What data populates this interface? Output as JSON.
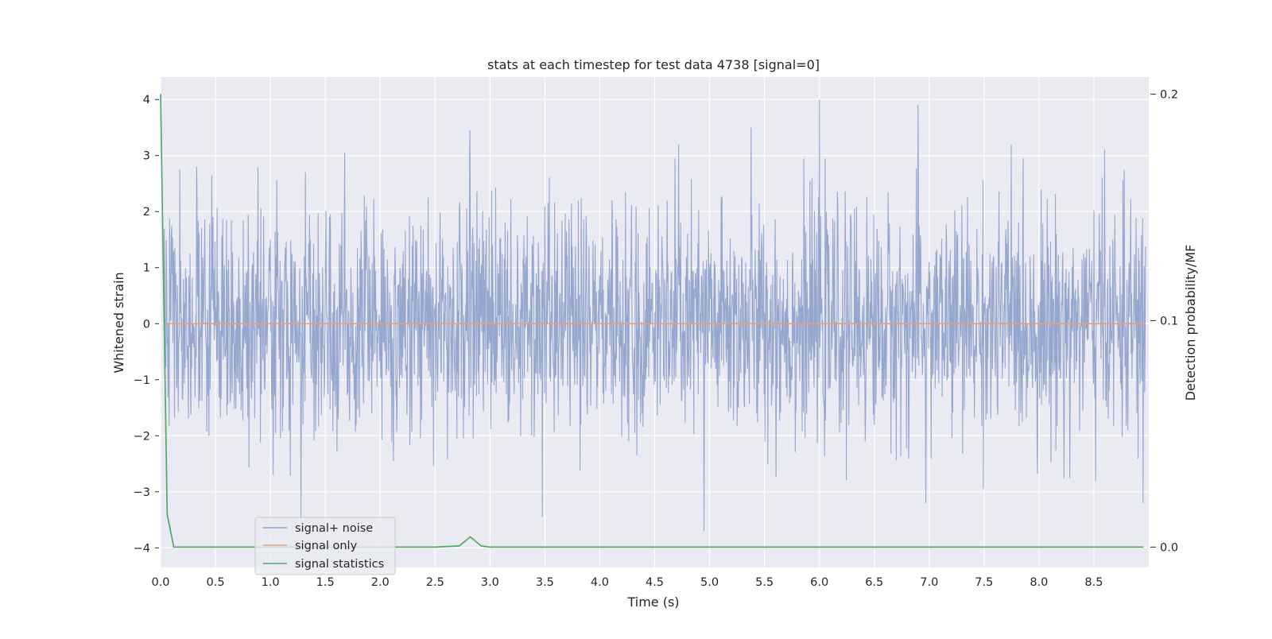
{
  "chart_data": {
    "type": "line",
    "title": "stats at each timestep for test data 4738 [signal=0]",
    "xlabel": "Time (s)",
    "ylabel": "Whitened strain",
    "y2label": "Detection probability/MF",
    "xlim": [
      0.0,
      9.0
    ],
    "ylim": [
      -4.35,
      4.4
    ],
    "y2lim": [
      -0.009,
      0.2075
    ],
    "x_ticks": [
      "0.0",
      "0.5",
      "1.0",
      "1.5",
      "2.0",
      "2.5",
      "3.0",
      "3.5",
      "4.0",
      "4.5",
      "5.0",
      "5.5",
      "6.0",
      "6.5",
      "7.0",
      "7.5",
      "8.0",
      "8.5"
    ],
    "y_ticks": [
      "4",
      "3",
      "2",
      "1",
      "0",
      "−1",
      "−2",
      "−3",
      "−4"
    ],
    "y2_ticks": [
      "0.2",
      "0.1",
      "0.0"
    ],
    "grid": true,
    "legend_position": "lower-left",
    "series": [
      {
        "name": "signal+ noise",
        "axis": "left",
        "color": "#8da0cb",
        "description_of_values": "dense whitened noise, roughly symmetric around 0, peaks near +4.0 at t≈6.0 and −3.7 at t≈4.95",
        "peaks": [
          {
            "x": 0.33,
            "y": 2.8
          },
          {
            "x": 1.32,
            "y": 2.7
          },
          {
            "x": 1.68,
            "y": 3.05
          },
          {
            "x": 2.82,
            "y": 3.45
          },
          {
            "x": 4.72,
            "y": 3.2
          },
          {
            "x": 5.38,
            "y": 3.5
          },
          {
            "x": 6.0,
            "y": 4.0
          },
          {
            "x": 6.9,
            "y": 3.9
          },
          {
            "x": 7.75,
            "y": 3.2
          },
          {
            "x": 8.6,
            "y": 3.1
          },
          {
            "x": 1.28,
            "y": -3.5
          },
          {
            "x": 3.48,
            "y": -3.45
          },
          {
            "x": 4.95,
            "y": -3.7
          },
          {
            "x": 6.97,
            "y": -3.2
          },
          {
            "x": 8.95,
            "y": -3.2
          }
        ]
      },
      {
        "name": "signal only",
        "axis": "left",
        "color": "#e5a07a",
        "values_constant": 0.0
      },
      {
        "name": "signal statistics",
        "axis": "right",
        "color": "#55a868",
        "x": [
          0.0,
          0.06,
          0.12,
          0.5,
          1.0,
          2.0,
          2.5,
          2.72,
          2.82,
          2.92,
          3.0,
          4.0,
          5.0,
          6.0,
          7.0,
          8.0,
          8.95
        ],
        "values": [
          0.2,
          0.0145,
          0.0,
          0.0,
          0.0,
          0.0,
          0.0,
          0.0005,
          0.0045,
          0.0005,
          0.0,
          0.0,
          0.0,
          0.0,
          0.0,
          0.0,
          0.0
        ]
      }
    ]
  }
}
